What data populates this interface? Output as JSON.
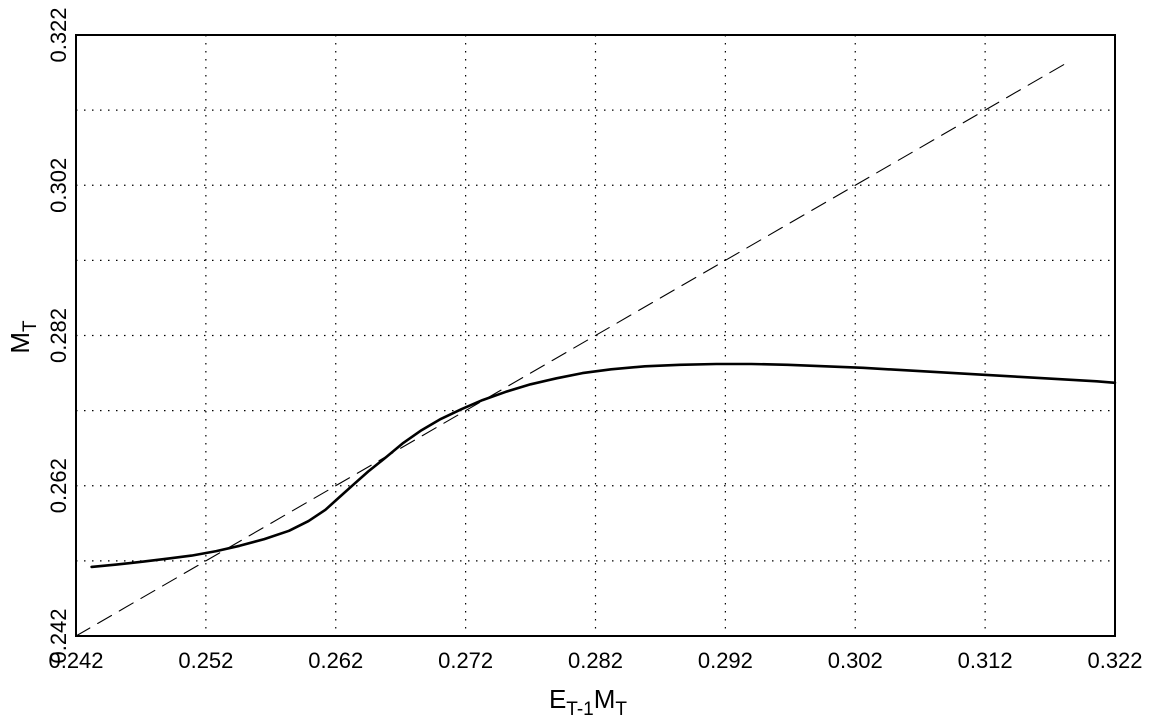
{
  "chart_data": {
    "type": "line",
    "title": "",
    "xlabel": {
      "main": "E",
      "sub1": "T-1",
      "main2": "M",
      "sub2": "T"
    },
    "ylabel": {
      "main": "M",
      "sub": "T"
    },
    "xlim": [
      0.242,
      0.322
    ],
    "ylim": [
      0.242,
      0.322
    ],
    "x_ticks": [
      "0.242",
      "0.252",
      "0.262",
      "0.272",
      "0.282",
      "0.292",
      "0.302",
      "0.312",
      "0.322"
    ],
    "y_ticks": [
      "0.242",
      "0.262",
      "0.282",
      "0.302",
      "0.322"
    ],
    "grid": true,
    "grid_style": "dotted",
    "series": [
      {
        "style": "solid",
        "color": "#000000",
        "x": [
          0.2432,
          0.2451,
          0.2472,
          0.2491,
          0.2509,
          0.2528,
          0.2546,
          0.2565,
          0.2584,
          0.2599,
          0.2612,
          0.2623,
          0.2634,
          0.2645,
          0.2658,
          0.2672,
          0.2686,
          0.2701,
          0.2717,
          0.2733,
          0.2751,
          0.277,
          0.279,
          0.281,
          0.2832,
          0.2858,
          0.2885,
          0.2913,
          0.294,
          0.2968,
          0.2997,
          0.3026,
          0.3056,
          0.3086,
          0.3116,
          0.3146,
          0.3176,
          0.3206,
          0.322
        ],
        "y": [
          0.2512,
          0.2515,
          0.2519,
          0.2523,
          0.2527,
          0.2533,
          0.254,
          0.2549,
          0.256,
          0.2573,
          0.2588,
          0.2605,
          0.2622,
          0.2639,
          0.2657,
          0.2677,
          0.2694,
          0.2709,
          0.2722,
          0.2734,
          0.2745,
          0.2755,
          0.2763,
          0.277,
          0.2775,
          0.2779,
          0.2781,
          0.2782,
          0.2782,
          0.2781,
          0.2779,
          0.2777,
          0.2774,
          0.2771,
          0.2768,
          0.2765,
          0.2762,
          0.2759,
          0.2757
        ]
      },
      {
        "style": "dashed",
        "color": "#000000",
        "x": [
          0.242,
          0.3185
        ],
        "y": [
          0.242,
          0.3185
        ]
      }
    ]
  }
}
